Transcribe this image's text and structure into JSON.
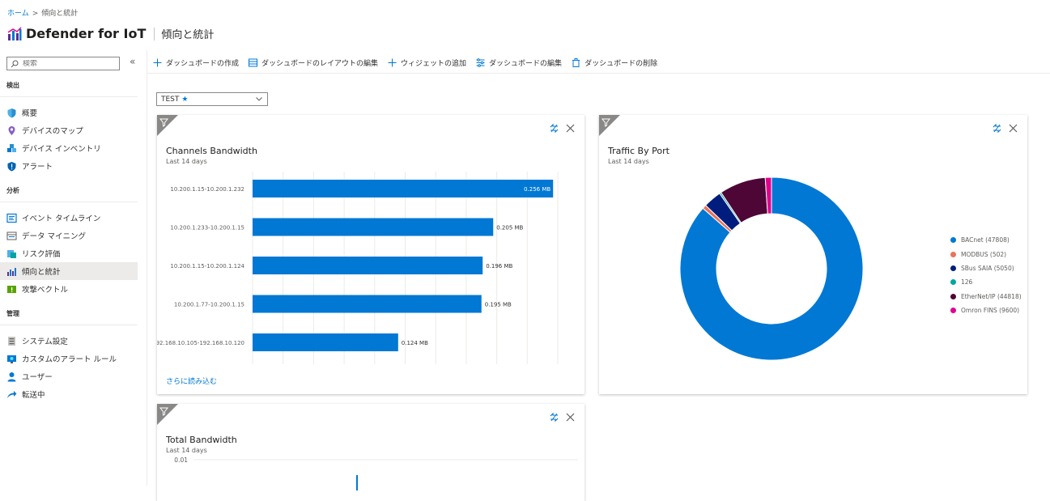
{
  "breadcrumb": {
    "home": "ホーム",
    "separator": ">",
    "current": "傾向と統計"
  },
  "app": {
    "title": "Defender for IoT",
    "page_title": "傾向と統計"
  },
  "search": {
    "placeholder": "検索"
  },
  "sidebar": {
    "sections": [
      {
        "label": "検出",
        "items": [
          {
            "label": "概要",
            "icon": "shield-icon"
          },
          {
            "label": "デバイスのマップ",
            "icon": "map-pin-icon"
          },
          {
            "label": "デバイス インベントリ",
            "icon": "cubes-icon"
          },
          {
            "label": "アラート",
            "icon": "alert-shield-icon"
          }
        ]
      },
      {
        "label": "分析",
        "items": [
          {
            "label": "イベント タイムライン",
            "icon": "timeline-icon"
          },
          {
            "label": "データ マイニング",
            "icon": "data-mining-icon"
          },
          {
            "label": "リスク評価",
            "icon": "risk-icon"
          },
          {
            "label": "傾向と統計",
            "icon": "chart-icon",
            "active": true
          },
          {
            "label": "攻撃ベクトル",
            "icon": "attack-vector-icon"
          }
        ]
      },
      {
        "label": "管理",
        "items": [
          {
            "label": "システム設定",
            "icon": "settings-icon"
          },
          {
            "label": "カスタムのアラート ルール",
            "icon": "custom-rule-icon"
          },
          {
            "label": "ユーザー",
            "icon": "user-icon"
          },
          {
            "label": "転送中",
            "icon": "forward-icon"
          }
        ]
      }
    ]
  },
  "toolbar": {
    "create": "ダッシュボードの作成",
    "layout": "ダッシュボードのレイアウトの編集",
    "add_widget": "ウィジェットの追加",
    "edit": "ダッシュボードの編集",
    "delete": "ダッシュボードの削除"
  },
  "dashboard_select": {
    "value": "TEST",
    "star": "★"
  },
  "widgets": {
    "channels": {
      "title": "Channels Bandwidth",
      "subtitle": "Last 14 days",
      "load_more": "さらに読み込む"
    },
    "traffic": {
      "title": "Traffic By Port",
      "subtitle": "Last 14 days"
    },
    "total": {
      "title": "Total Bandwidth",
      "subtitle": "Last 14 days",
      "y_tick": "0.01"
    }
  },
  "chart_data": [
    {
      "type": "bar",
      "orientation": "horizontal",
      "title": "Channels Bandwidth",
      "subtitle": "Last 14 days",
      "categories": [
        "10.200.1.15-10.200.1.232",
        "10.200.1.233-10.200.1.15",
        "10.200.1.15-10.200.1.124",
        "10.200.1.77-10.200.1.15",
        "192.168.10.105-192.168.10.120"
      ],
      "values": [
        0.256,
        0.205,
        0.196,
        0.195,
        0.124
      ],
      "labels": [
        "0.256 MB",
        "0.205 MB",
        "0.196 MB",
        "0.195 MB",
        "0.124 MB"
      ],
      "unit": "MB",
      "color": "#0078d4",
      "xlim": [
        0,
        0.26
      ],
      "grid": true
    },
    {
      "type": "pie",
      "variant": "donut",
      "title": "Traffic By Port",
      "subtitle": "Last 14 days",
      "categories": [
        "BACnet (47808)",
        "MODBUS (502)",
        "SBus SAIA (5050)",
        "126",
        "EtherNet/IP (44818)",
        "Omron FINS (9600)"
      ],
      "values": [
        86.5,
        0.7,
        3.2,
        0.3,
        8.2,
        1.1
      ],
      "colors": [
        "#0078d4",
        "#e8735a",
        "#001d7e",
        "#00a6a0",
        "#4e0637",
        "#e3008c"
      ],
      "legend": "right"
    },
    {
      "type": "line",
      "title": "Total Bandwidth",
      "subtitle": "Last 14 days",
      "y_ticks": [
        "0.01"
      ]
    }
  ]
}
